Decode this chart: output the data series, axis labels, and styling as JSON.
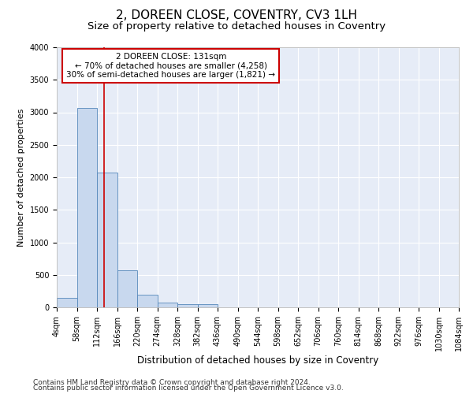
{
  "title": "2, DOREEN CLOSE, COVENTRY, CV3 1LH",
  "subtitle": "Size of property relative to detached houses in Coventry",
  "xlabel": "Distribution of detached houses by size in Coventry",
  "ylabel": "Number of detached properties",
  "bins": [
    4,
    58,
    112,
    166,
    220,
    274,
    328,
    382,
    436,
    490,
    544,
    598,
    652,
    706,
    760,
    814,
    868,
    922,
    976,
    1030,
    1084
  ],
  "counts": [
    150,
    3070,
    2070,
    570,
    200,
    75,
    50,
    50,
    0,
    0,
    0,
    0,
    0,
    0,
    0,
    0,
    0,
    0,
    0,
    0
  ],
  "bar_color": "#c8d8ee",
  "bar_edge_color": "#5588bb",
  "background_color": "#e6ecf7",
  "grid_color": "#ffffff",
  "vline_x": 131,
  "vline_color": "#cc0000",
  "annotation_text": "2 DOREEN CLOSE: 131sqm\n← 70% of detached houses are smaller (4,258)\n30% of semi-detached houses are larger (1,821) →",
  "annotation_box_color": "#ffffff",
  "annotation_box_edge": "#cc0000",
  "ylim": [
    0,
    4000
  ],
  "yticks": [
    0,
    500,
    1000,
    1500,
    2000,
    2500,
    3000,
    3500,
    4000
  ],
  "footnote1": "Contains HM Land Registry data © Crown copyright and database right 2024.",
  "footnote2": "Contains public sector information licensed under the Open Government Licence v3.0.",
  "title_fontsize": 11,
  "subtitle_fontsize": 9.5,
  "xlabel_fontsize": 8.5,
  "ylabel_fontsize": 8,
  "tick_fontsize": 7,
  "footnote_fontsize": 6.5,
  "annotation_fontsize": 7.5
}
